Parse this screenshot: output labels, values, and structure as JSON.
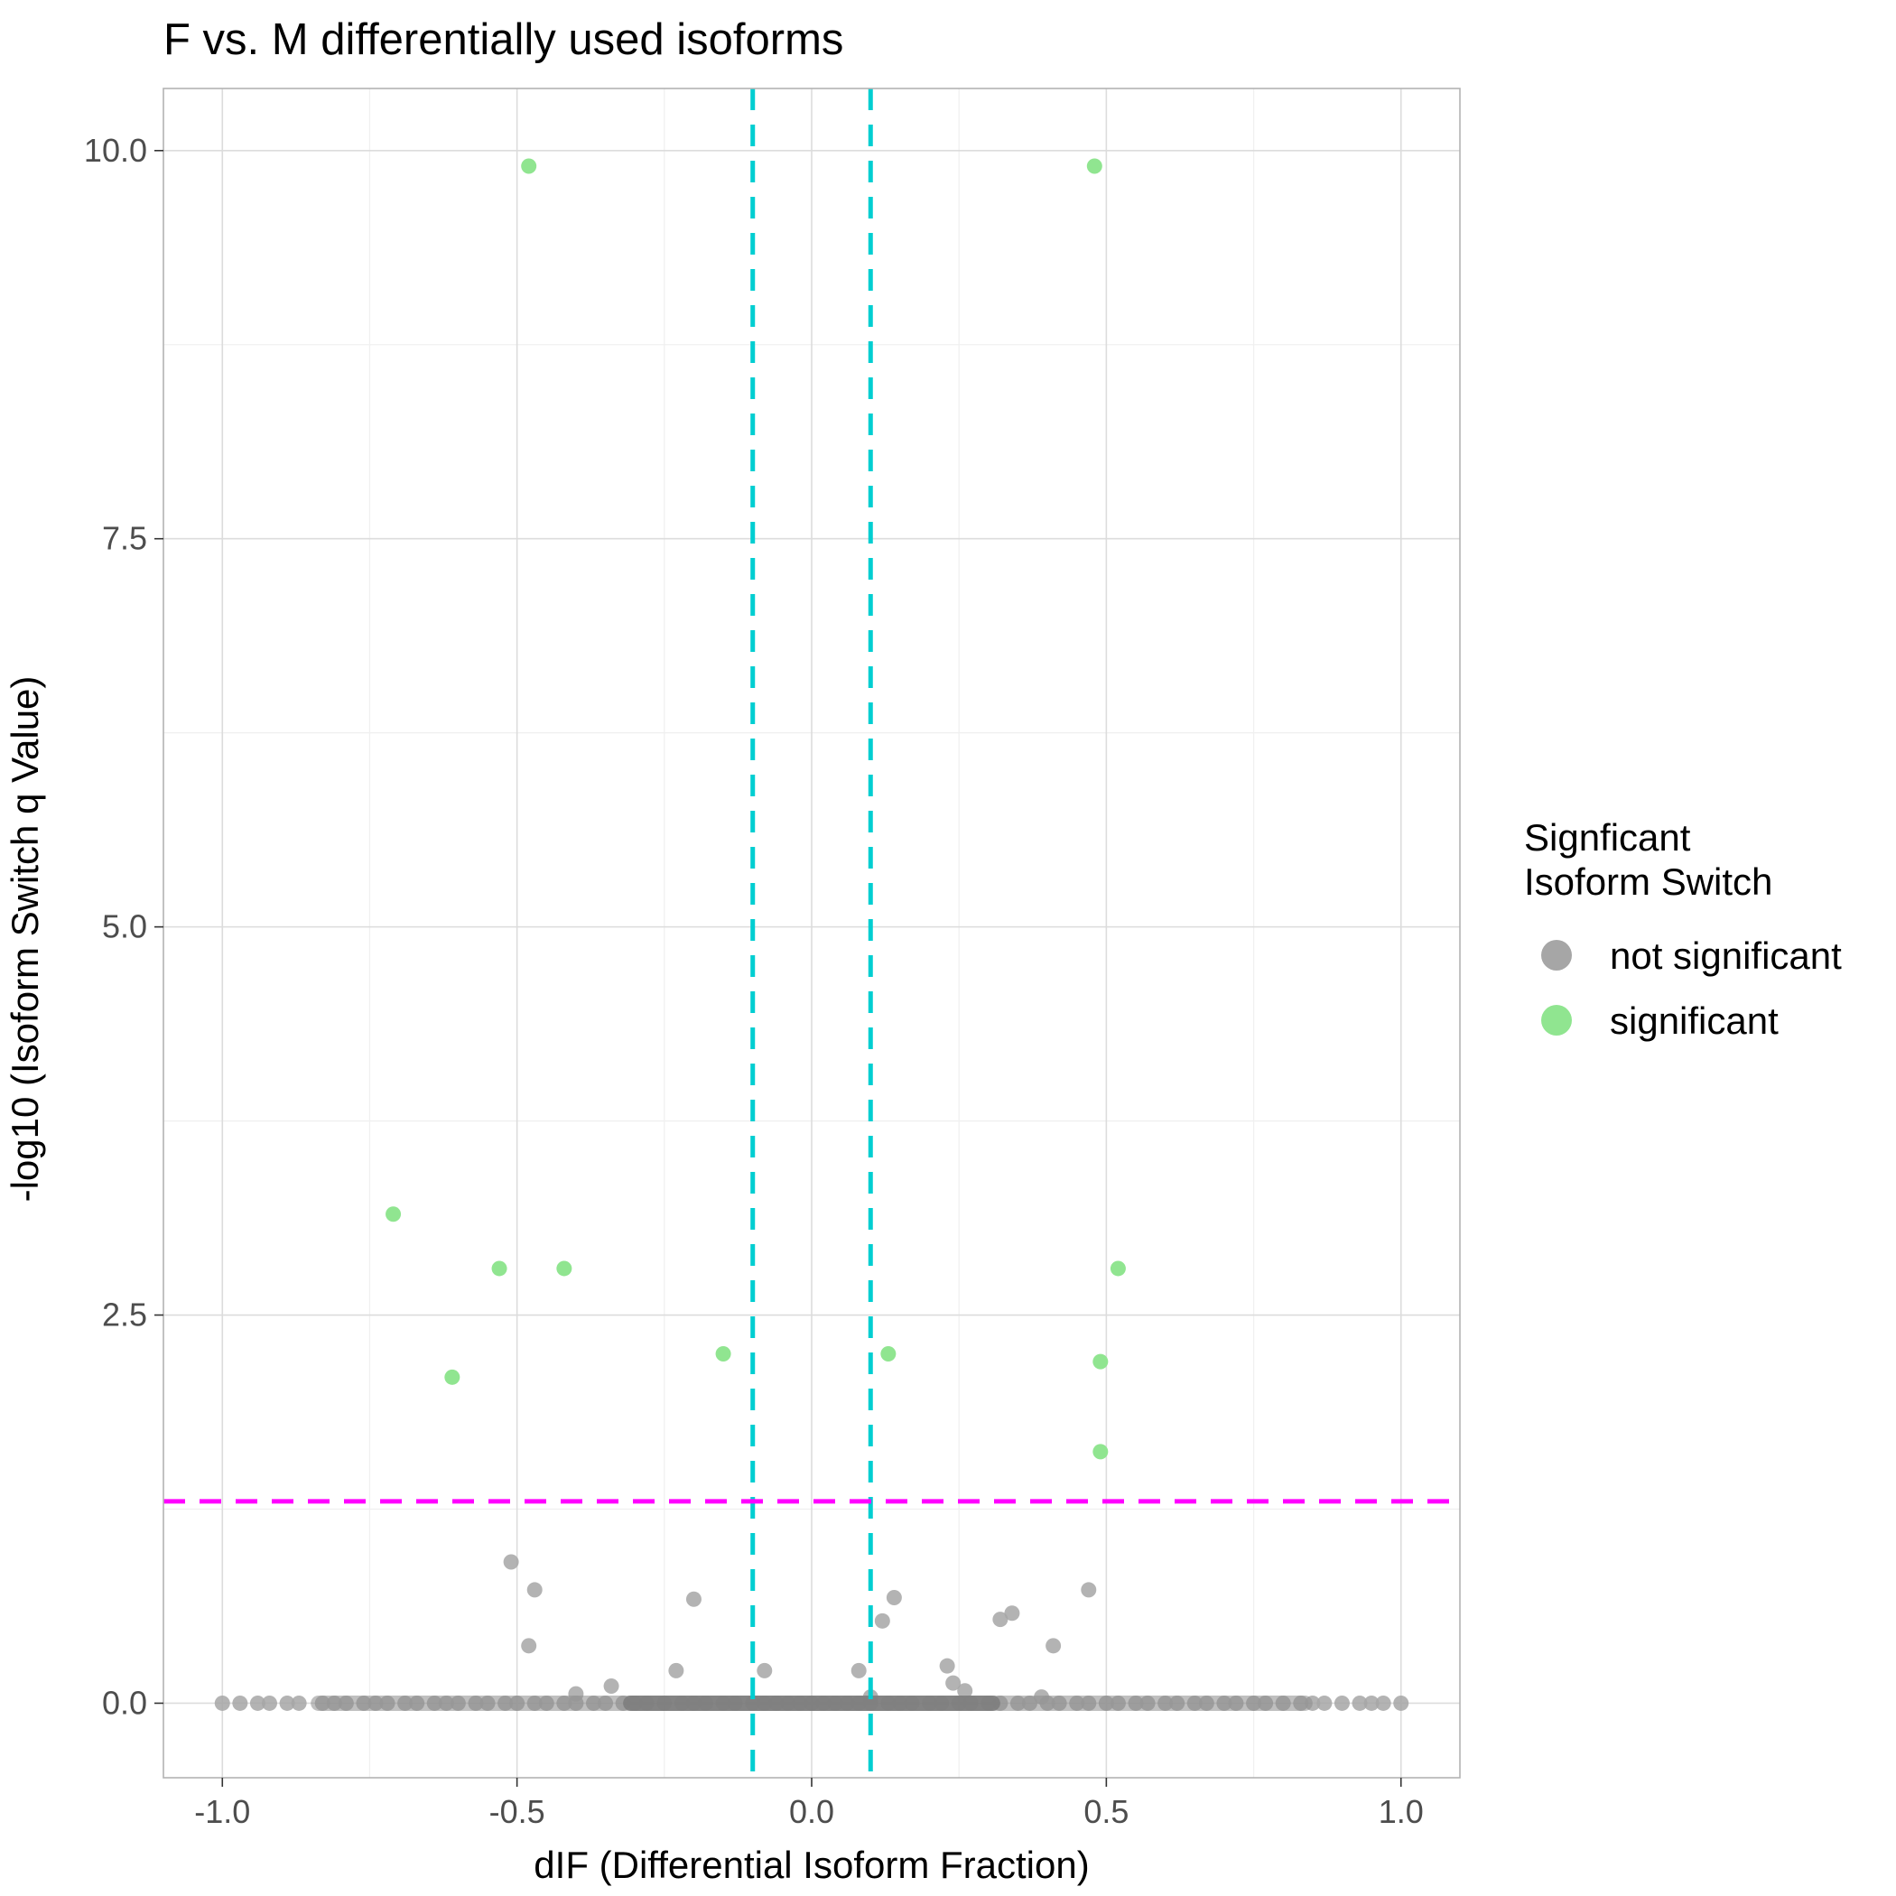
{
  "chart_data": {
    "type": "scatter",
    "title": "F vs. M differentially used isoforms",
    "xlabel": "dIF (Differential Isoform Fraction)",
    "ylabel": "-log10 (Isoform Switch q Value)",
    "xlim": [
      -1.1,
      1.1
    ],
    "ylim": [
      -0.48,
      10.4
    ],
    "x_ticks": [
      -1.0,
      -0.5,
      0.0,
      0.5,
      1.0
    ],
    "x_tick_labels": [
      "-1.0",
      "-0.5",
      "0.0",
      "0.5",
      "1.0"
    ],
    "y_ticks": [
      0.0,
      2.5,
      5.0,
      7.5,
      10.0
    ],
    "y_tick_labels": [
      "0.0",
      "2.5",
      "5.0",
      "7.5",
      "10.0"
    ],
    "grid": true,
    "legend_position": "right",
    "legend": {
      "title": [
        "Signficant",
        "Isoform Switch"
      ],
      "entries": [
        {
          "label": "not significant",
          "color": "#a6a6a6"
        },
        {
          "label": "significant",
          "color": "#90e590"
        }
      ]
    },
    "reference_lines": [
      {
        "orientation": "vertical",
        "value": -0.1,
        "color": "#00ced1",
        "style": "dashed"
      },
      {
        "orientation": "vertical",
        "value": 0.1,
        "color": "#00ced1",
        "style": "dashed"
      },
      {
        "orientation": "horizontal",
        "value": 1.3,
        "color": "#ff00ff",
        "style": "dashed"
      }
    ],
    "series": [
      {
        "name": "significant",
        "color": "#90e590",
        "points": [
          [
            -0.48,
            9.9
          ],
          [
            0.48,
            9.9
          ],
          [
            -0.71,
            3.15
          ],
          [
            -0.53,
            2.8
          ],
          [
            -0.42,
            2.8
          ],
          [
            -0.61,
            2.1
          ],
          [
            -0.15,
            2.25
          ],
          [
            0.13,
            2.25
          ],
          [
            0.52,
            2.8
          ],
          [
            0.49,
            2.2
          ],
          [
            0.49,
            1.62
          ]
        ]
      },
      {
        "name": "not significant",
        "color": "#a6a6a6",
        "points": [
          [
            -0.51,
            0.91
          ],
          [
            -0.47,
            0.73
          ],
          [
            -0.48,
            0.37
          ],
          [
            -0.2,
            0.67
          ],
          [
            -0.23,
            0.21
          ],
          [
            -0.08,
            0.21
          ],
          [
            -0.4,
            0.06
          ],
          [
            -0.34,
            0.11
          ],
          [
            0.08,
            0.21
          ],
          [
            0.12,
            0.53
          ],
          [
            0.14,
            0.68
          ],
          [
            0.23,
            0.24
          ],
          [
            0.24,
            0.13
          ],
          [
            0.26,
            0.08
          ],
          [
            0.32,
            0.54
          ],
          [
            0.34,
            0.58
          ],
          [
            0.41,
            0.37
          ],
          [
            0.47,
            0.73
          ],
          [
            0.1,
            0.04
          ],
          [
            0.39,
            0.04
          ],
          [
            -1.0,
            0.0
          ],
          [
            -0.97,
            0.0
          ],
          [
            -0.94,
            0.0
          ],
          [
            -0.92,
            0.0
          ],
          [
            -0.89,
            0.0
          ],
          [
            -0.87,
            0.0
          ],
          [
            -0.83,
            0.0
          ],
          [
            -0.81,
            0.0
          ],
          [
            -0.79,
            0.0
          ],
          [
            -0.76,
            0.0
          ],
          [
            -0.74,
            0.0
          ],
          [
            -0.72,
            0.0
          ],
          [
            -0.69,
            0.0
          ],
          [
            -0.67,
            0.0
          ],
          [
            -0.64,
            0.0
          ],
          [
            -0.62,
            0.0
          ],
          [
            -0.6,
            0.0
          ],
          [
            -0.57,
            0.0
          ],
          [
            -0.55,
            0.0
          ],
          [
            -0.52,
            0.0
          ],
          [
            -0.5,
            0.0
          ],
          [
            -0.47,
            0.0
          ],
          [
            -0.45,
            0.0
          ],
          [
            -0.42,
            0.0
          ],
          [
            -0.4,
            0.0
          ],
          [
            -0.37,
            0.0
          ],
          [
            -0.35,
            0.0
          ],
          [
            -0.32,
            0.0
          ],
          [
            -0.3,
            0.0
          ],
          [
            -0.28,
            0.0
          ],
          [
            -0.25,
            0.0
          ],
          [
            -0.22,
            0.0
          ],
          [
            -0.2,
            0.0
          ],
          [
            -0.18,
            0.0
          ],
          [
            -0.15,
            0.0
          ],
          [
            -0.13,
            0.0
          ],
          [
            -0.1,
            0.0
          ],
          [
            -0.08,
            0.0
          ],
          [
            -0.06,
            0.0
          ],
          [
            -0.04,
            0.0
          ],
          [
            -0.02,
            0.0
          ],
          [
            0.0,
            0.0
          ],
          [
            0.02,
            0.0
          ],
          [
            0.04,
            0.0
          ],
          [
            0.06,
            0.0
          ],
          [
            0.08,
            0.0
          ],
          [
            0.1,
            0.0
          ],
          [
            0.13,
            0.0
          ],
          [
            0.15,
            0.0
          ],
          [
            0.17,
            0.0
          ],
          [
            0.2,
            0.0
          ],
          [
            0.22,
            0.0
          ],
          [
            0.25,
            0.0
          ],
          [
            0.27,
            0.0
          ],
          [
            0.3,
            0.0
          ],
          [
            0.32,
            0.0
          ],
          [
            0.35,
            0.0
          ],
          [
            0.37,
            0.0
          ],
          [
            0.4,
            0.0
          ],
          [
            0.42,
            0.0
          ],
          [
            0.45,
            0.0
          ],
          [
            0.47,
            0.0
          ],
          [
            0.5,
            0.0
          ],
          [
            0.52,
            0.0
          ],
          [
            0.55,
            0.0
          ],
          [
            0.57,
            0.0
          ],
          [
            0.6,
            0.0
          ],
          [
            0.62,
            0.0
          ],
          [
            0.65,
            0.0
          ],
          [
            0.67,
            0.0
          ],
          [
            0.7,
            0.0
          ],
          [
            0.72,
            0.0
          ],
          [
            0.75,
            0.0
          ],
          [
            0.77,
            0.0
          ],
          [
            0.8,
            0.0
          ],
          [
            0.83,
            0.0
          ],
          [
            0.85,
            0.0
          ],
          [
            0.87,
            0.0
          ],
          [
            0.9,
            0.0
          ],
          [
            0.93,
            0.0
          ],
          [
            0.95,
            0.0
          ],
          [
            0.97,
            0.0
          ],
          [
            1.0,
            0.0
          ]
        ]
      }
    ]
  }
}
